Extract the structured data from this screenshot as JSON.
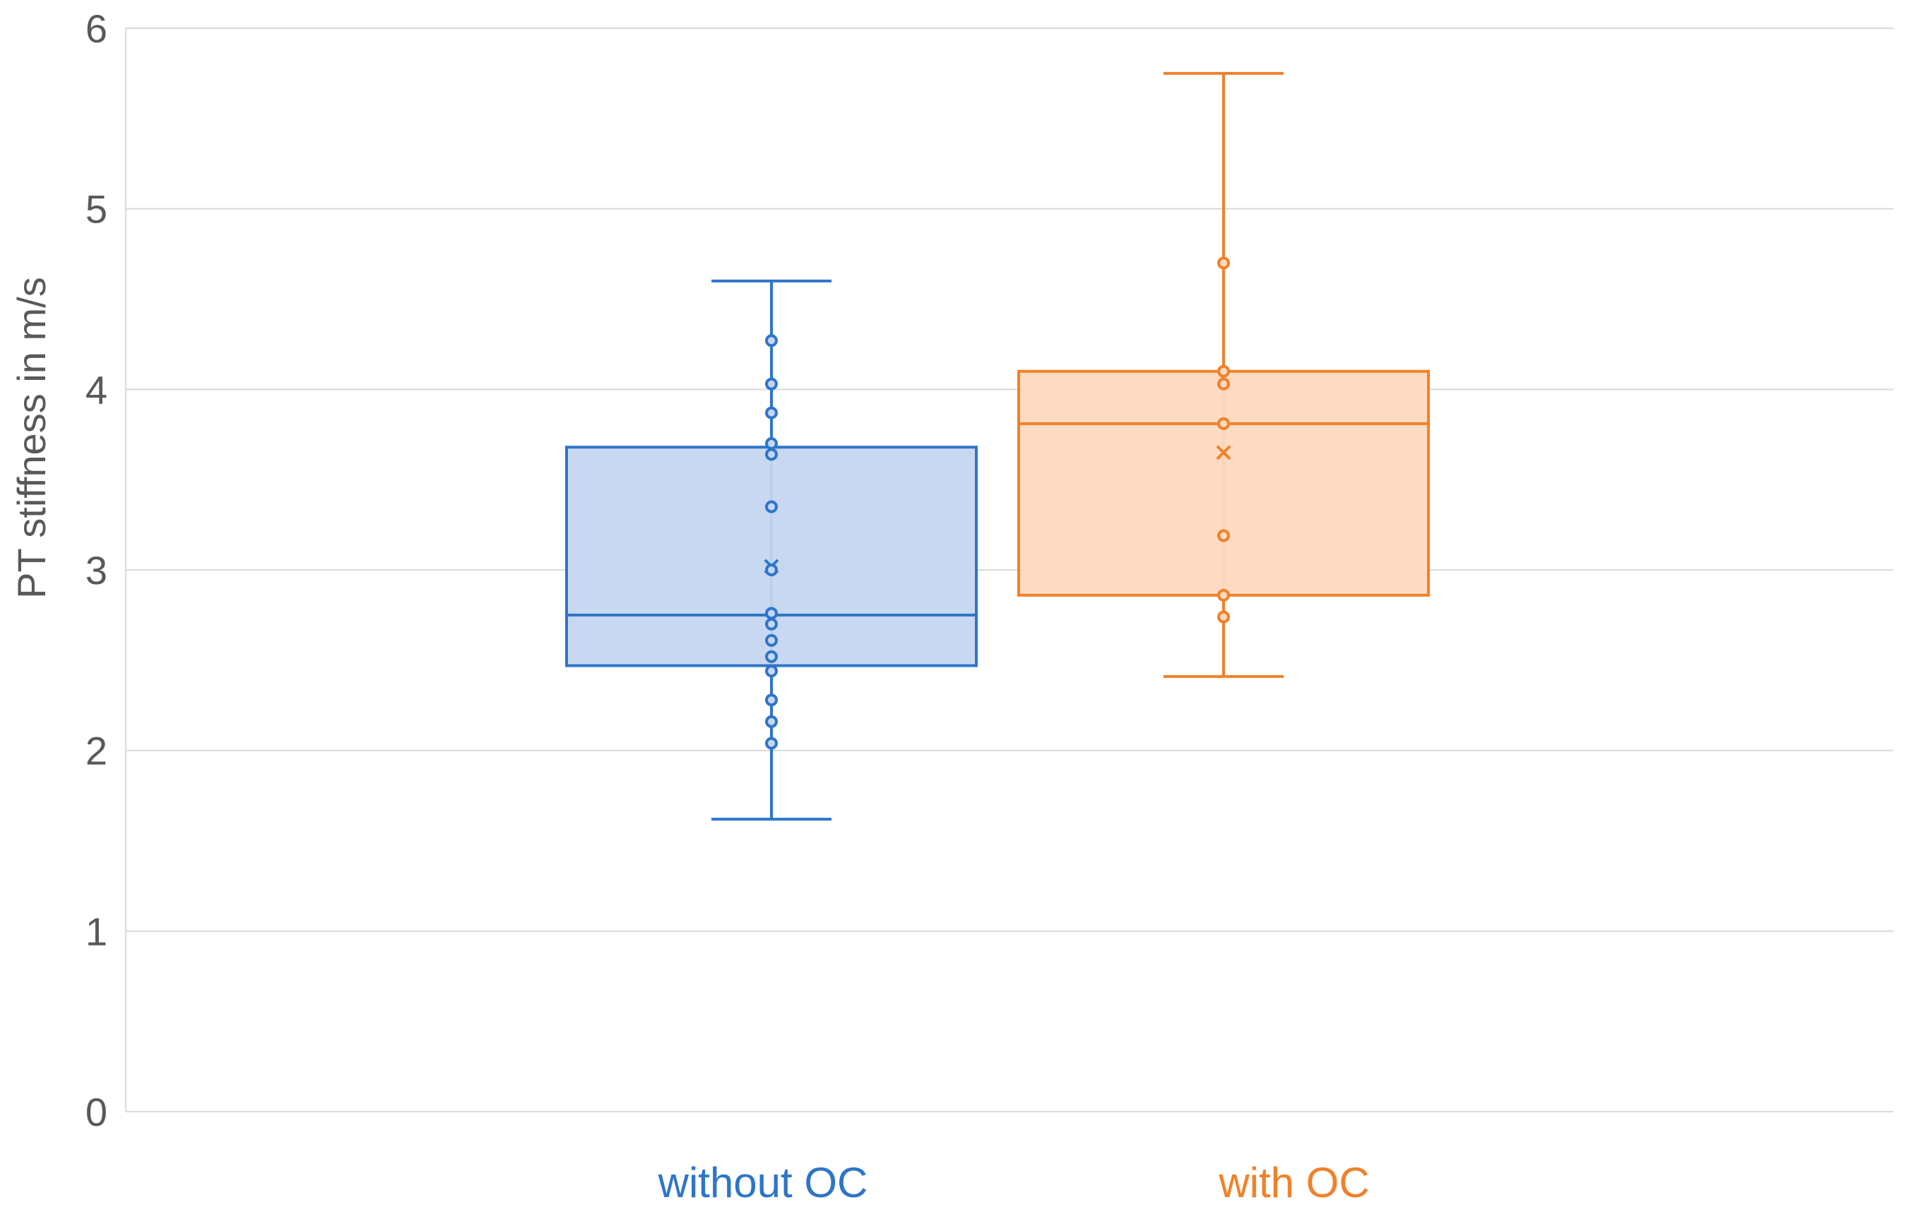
{
  "chart_data": {
    "type": "box",
    "ylabel": "PT stiffness in m/s",
    "xlabel": "",
    "ylim": [
      0,
      6
    ],
    "yticks": [
      0,
      1,
      2,
      3,
      4,
      5,
      6
    ],
    "grid": true,
    "categories": [
      "without OC",
      "with OC"
    ],
    "series": [
      {
        "category": "without OC",
        "color": "#2e75c9",
        "fill": "#c5d6ef",
        "whisker_low": 1.62,
        "q1": 2.47,
        "median": 2.75,
        "mean": 3.02,
        "q3": 3.68,
        "whisker_high": 4.6,
        "points": [
          4.27,
          4.03,
          3.87,
          3.7,
          3.64,
          3.35,
          3.0,
          2.76,
          2.7,
          2.61,
          2.52,
          2.44,
          2.28,
          2.16,
          2.04
        ]
      },
      {
        "category": "with OC",
        "color": "#f0812a",
        "fill": "#fdd9c0",
        "whisker_low": 2.41,
        "q1": 2.86,
        "median": 3.81,
        "mean": 3.65,
        "q3": 4.1,
        "whisker_high": 5.75,
        "points": [
          4.7,
          4.1,
          4.03,
          3.81,
          3.19,
          2.86,
          2.74
        ]
      }
    ]
  }
}
